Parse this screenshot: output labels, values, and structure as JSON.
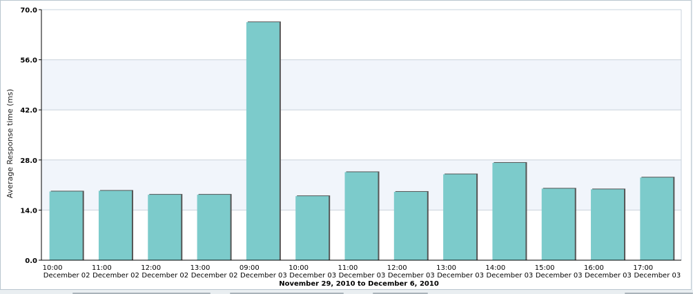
{
  "chart_data": {
    "type": "bar",
    "xlabel": "November 29, 2010 to December 6, 2010",
    "ylabel": "Average Response time (ms)",
    "ylim": [
      0,
      70
    ],
    "yticks": [
      "0.0",
      "14.0",
      "28.0",
      "42.0",
      "56.0",
      "70.0"
    ],
    "grid": true,
    "categories": [
      {
        "time": "10:00",
        "date": "December 02"
      },
      {
        "time": "11:00",
        "date": "December 02"
      },
      {
        "time": "12:00",
        "date": "December 02"
      },
      {
        "time": "13:00",
        "date": "December 02"
      },
      {
        "time": "09:00",
        "date": "December 03"
      },
      {
        "time": "10:00",
        "date": "December 03"
      },
      {
        "time": "11:00",
        "date": "December 03"
      },
      {
        "time": "12:00",
        "date": "December 03"
      },
      {
        "time": "13:00",
        "date": "December 03"
      },
      {
        "time": "14:00",
        "date": "December 03"
      },
      {
        "time": "15:00",
        "date": "December 03"
      },
      {
        "time": "16:00",
        "date": "December 03"
      },
      {
        "time": "17:00",
        "date": "December 03"
      }
    ],
    "values": [
      19.2,
      19.4,
      18.3,
      18.3,
      66.5,
      17.9,
      24.6,
      19.1,
      24.0,
      27.2,
      20.0,
      19.8,
      23.1
    ],
    "colors": {
      "bar": "#7ccbcb",
      "bar_shadow": "#555555",
      "band": "#f1f5fb",
      "grid": "#c9d3dc",
      "axis": "#000000"
    }
  }
}
